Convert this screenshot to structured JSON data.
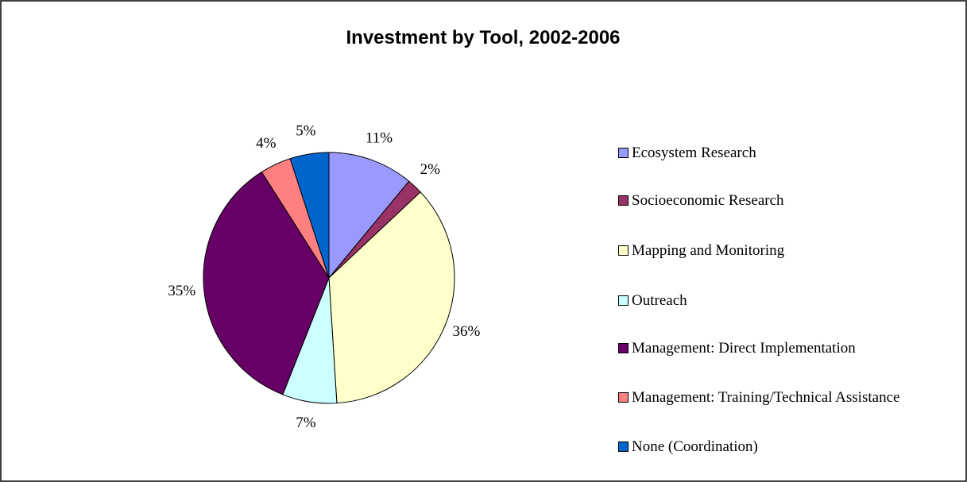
{
  "chart_data": {
    "type": "pie",
    "title": "Investment by Tool, 2002-2006",
    "categories": [
      "Ecosystem Research",
      "Socioeconomic Research",
      "Mapping and Monitoring",
      "Outreach",
      "Management: Direct Implementation",
      "Management: Training/Technical Assistance",
      "None (Coordination)"
    ],
    "values": [
      11,
      2,
      36,
      7,
      35,
      4,
      5
    ],
    "value_labels": [
      "11%",
      "2%",
      "36%",
      "7%",
      "35%",
      "4%",
      "5%"
    ],
    "colors": [
      "#9999ff",
      "#993366",
      "#ffffcc",
      "#ccffff",
      "#660066",
      "#ff8080",
      "#0066cc"
    ],
    "legend": "right"
  }
}
